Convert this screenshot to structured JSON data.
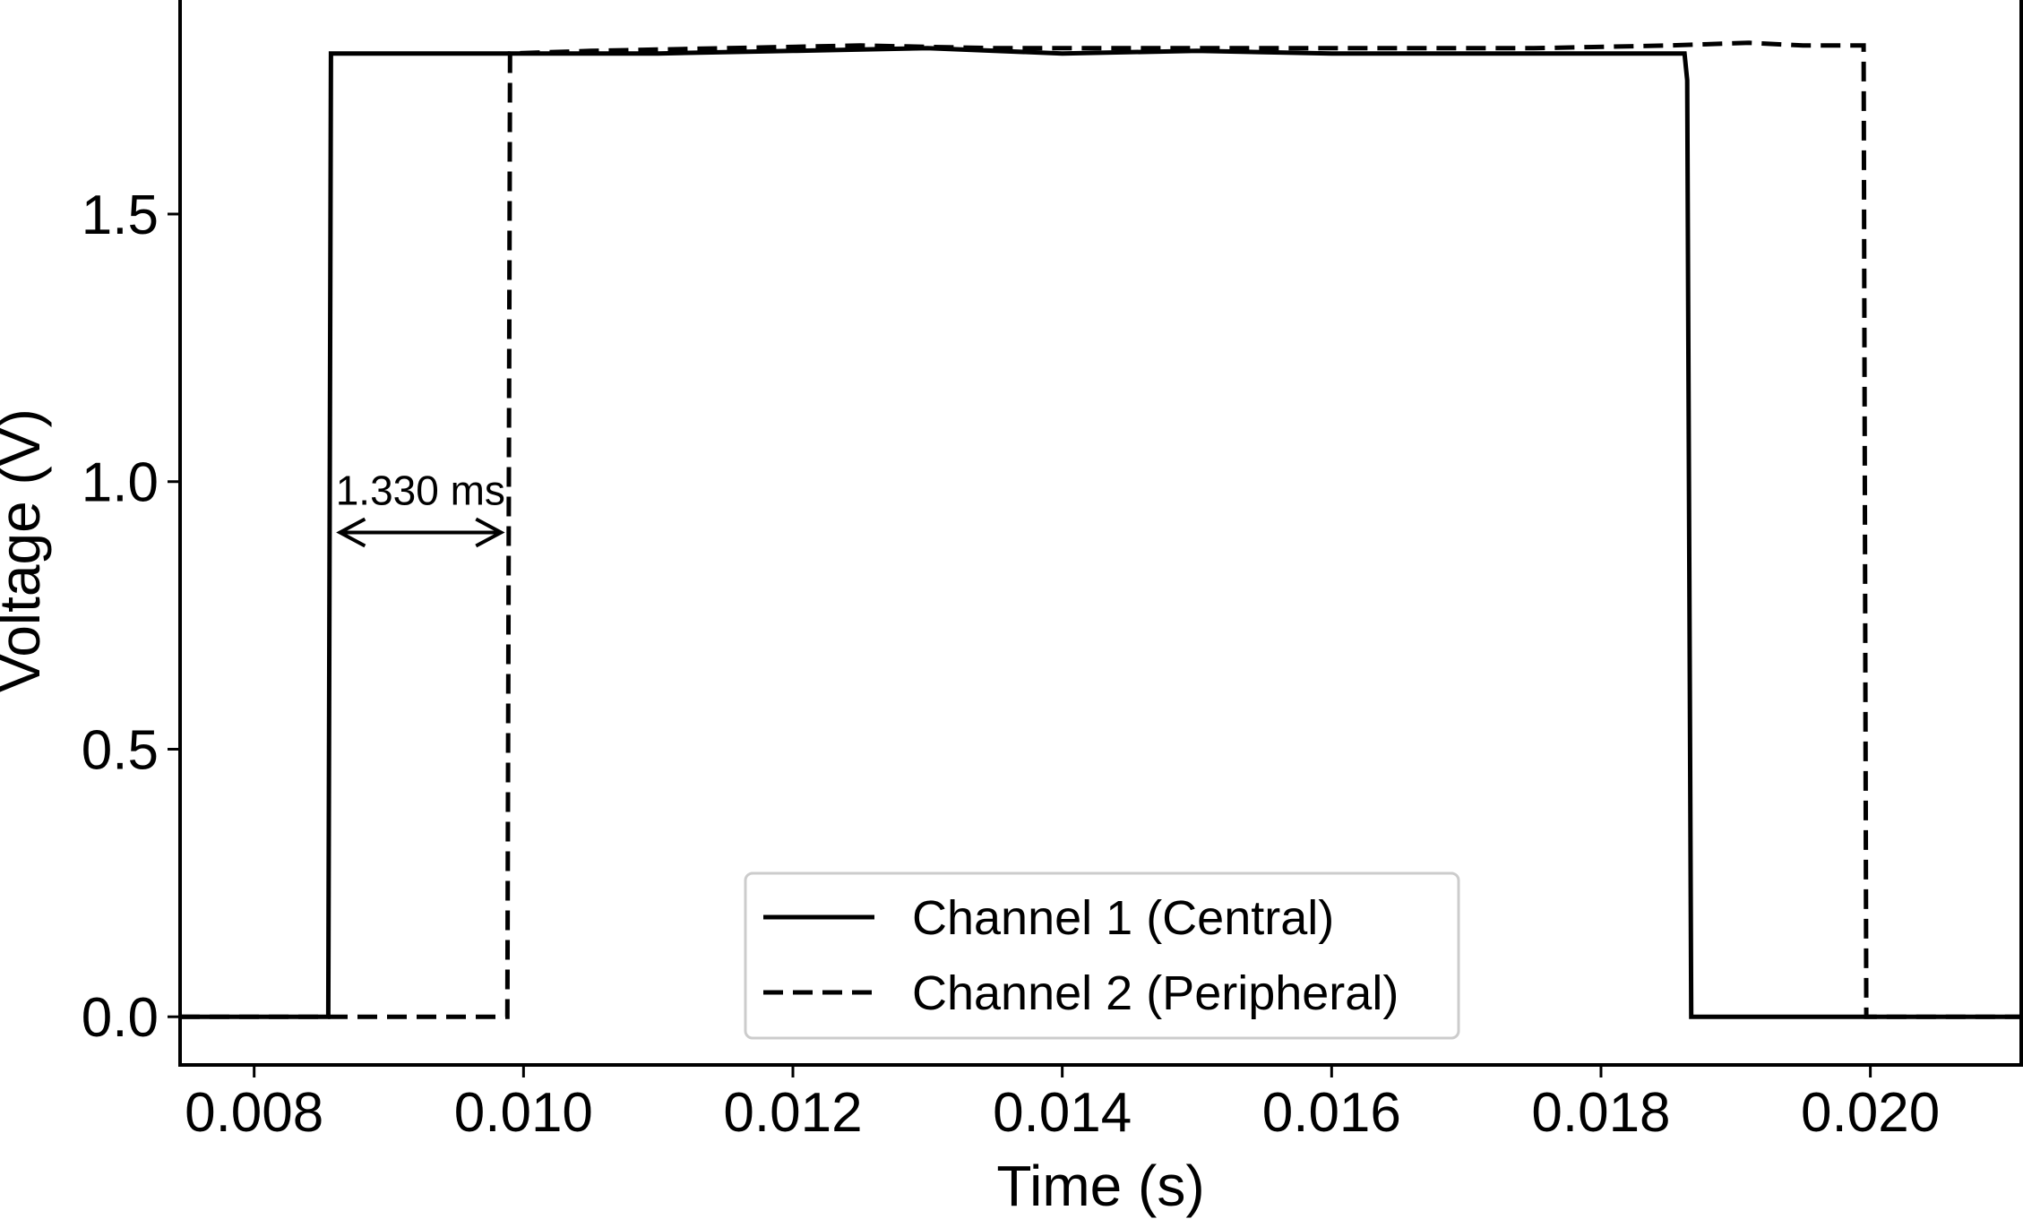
{
  "chart_data": {
    "type": "line",
    "title": "",
    "xlabel": "Time (s)",
    "ylabel": "Voltage (V)",
    "xlim": [
      0.00745,
      0.02112
    ],
    "ylim": [
      -0.09,
      1.9
    ],
    "xticks": [
      0.008,
      0.01,
      0.012,
      0.014,
      0.016,
      0.018,
      0.02
    ],
    "xtick_labels": [
      "0.008",
      "0.010",
      "0.012",
      "0.014",
      "0.016",
      "0.018",
      "0.020"
    ],
    "yticks": [
      0.0,
      0.5,
      1.0,
      1.5
    ],
    "ytick_labels": [
      "0.0",
      "0.5",
      "1.0",
      "1.5"
    ],
    "grid": false,
    "legend_position": "bottom-center",
    "series": [
      {
        "name": "Channel 1 (Central)",
        "line_style": "solid",
        "color": "#000000",
        "x": [
          0.00745,
          0.00855,
          0.00857,
          0.0093,
          0.01,
          0.011,
          0.012,
          0.013,
          0.014,
          0.015,
          0.016,
          0.017,
          0.018,
          0.01862,
          0.01864,
          0.01867,
          0.0195,
          0.0205,
          0.02112
        ],
        "y": [
          0.0,
          0.0,
          1.8,
          1.8,
          1.8,
          1.8,
          1.805,
          1.81,
          1.8,
          1.805,
          1.8,
          1.8,
          1.8,
          1.8,
          1.75,
          0.0,
          0.0,
          0.0,
          0.0
        ]
      },
      {
        "name": "Channel 2 (Peripheral)",
        "line_style": "dashed",
        "color": "#000000",
        "x": [
          0.00745,
          0.00988,
          0.0099,
          0.0105,
          0.0115,
          0.0125,
          0.0135,
          0.0145,
          0.0155,
          0.0165,
          0.0175,
          0.0185,
          0.0191,
          0.0195,
          0.01995,
          0.01997,
          0.0205,
          0.02112
        ],
        "y": [
          0.0,
          0.0,
          1.8,
          1.805,
          1.81,
          1.815,
          1.81,
          1.81,
          1.81,
          1.81,
          1.81,
          1.815,
          1.82,
          1.815,
          1.815,
          0.0,
          0.0,
          0.0
        ]
      }
    ],
    "annotations": [
      {
        "text": "1.330 ms",
        "type": "double-arrow",
        "x_start": 0.00857,
        "x_end": 0.0099,
        "y": 0.905,
        "text_y": 0.98
      }
    ]
  }
}
